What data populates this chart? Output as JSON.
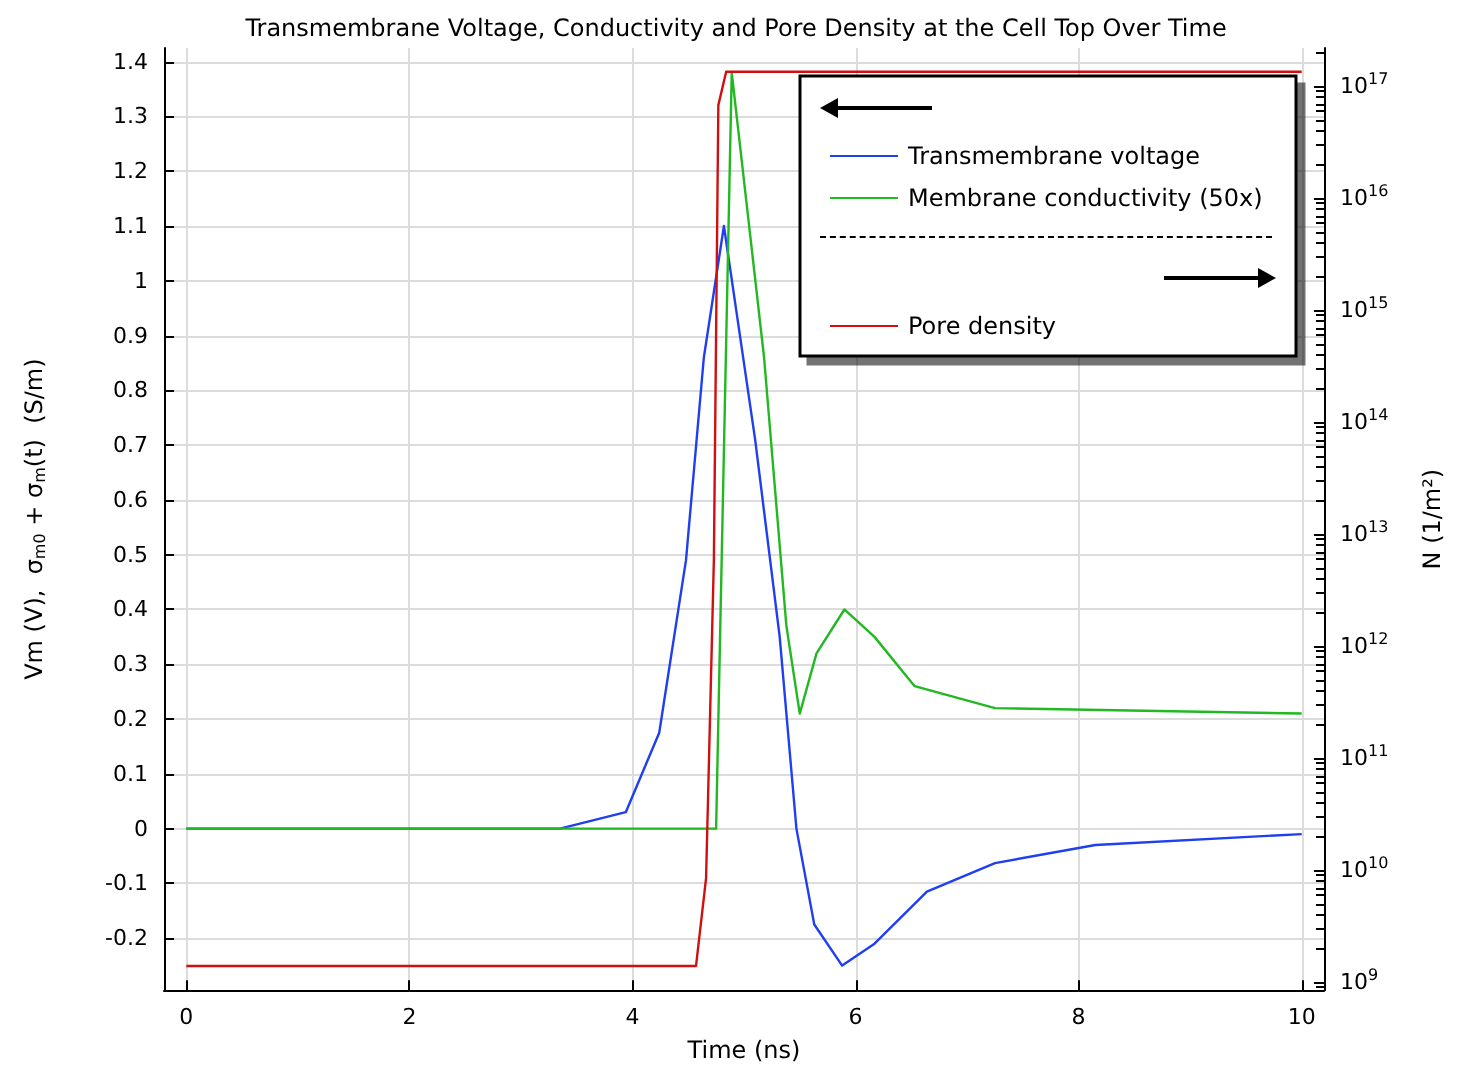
{
  "chart_data": {
    "type": "line",
    "title": "Transmembrane Voltage, Conductivity and Pore Density at the Cell Top Over Time",
    "xlabel": "Time (ns)",
    "ylabel": "Vm (V),  σ$_{m0}$ + σ$_{m}$(t)  (S/m)",
    "y2label": "N (1/m²)",
    "xlim": [
      -0.2,
      10.2
    ],
    "xticks": [
      0,
      2,
      4,
      6,
      8,
      10
    ],
    "ylim": [
      -0.295,
      1.425
    ],
    "yticks": [
      -0.2,
      -0.1,
      0,
      0.1,
      0.2,
      0.3,
      0.4,
      0.5,
      0.6,
      0.7,
      0.8,
      0.9,
      1,
      1.1,
      1.2,
      1.3,
      1.4
    ],
    "y2lim": [
      850000000.0,
      2.2e+17
    ],
    "y2ticks": [
      {
        "value": 1000000000.0,
        "label": "10$^{9}$"
      },
      {
        "value": 10000000000.0,
        "label": "10$^{10}$"
      },
      {
        "value": 100000000000.0,
        "label": "10$^{11}$"
      },
      {
        "value": 1000000000000.0,
        "label": "10$^{12}$"
      },
      {
        "value": 10000000000000.0,
        "label": "10$^{13}$"
      },
      {
        "value": 100000000000000.0,
        "label": "10$^{14}$"
      },
      {
        "value": 1000000000000000.0,
        "label": "10$^{15}$"
      },
      {
        "value": 1e+16,
        "label": "10$^{16}$"
      },
      {
        "value": 1e+17,
        "label": "10$^{17}$"
      }
    ],
    "log": "y2",
    "grid": true,
    "legend": "top right",
    "marker": "none",
    "line_style": "solid",
    "series": [
      {
        "name": "Transmembrane voltage",
        "color": "#1f3ff0",
        "x": [
          0,
          3.35,
          3.94,
          4.24,
          4.48,
          4.64,
          4.82,
          5.1,
          5.32,
          5.47,
          5.63,
          5.88,
          6.17,
          6.64,
          7.25,
          8.15,
          10
        ],
        "values": [
          0,
          0,
          0.03,
          0.175,
          0.49,
          0.86,
          1.1,
          0.71,
          0.35,
          0,
          -0.175,
          -0.25,
          -0.21,
          -0.115,
          -0.063,
          -0.03,
          -0.01
        ]
      },
      {
        "name": "Membrane conductivity (50x)",
        "color": "#22b822",
        "x": [
          0,
          4.75,
          4.89,
          5.18,
          5.38,
          5.5,
          5.65,
          5.9,
          6.17,
          6.53,
          7.25,
          10
        ],
        "values": [
          0,
          0,
          1.38,
          0.86,
          0.37,
          0.21,
          0.32,
          0.4,
          0.35,
          0.26,
          0.22,
          0.21
        ]
      },
      {
        "name": "Pore density",
        "color": "#d01010",
        "axis": "y2",
        "x": [
          0,
          4.57,
          4.66,
          4.73,
          4.77,
          4.84,
          10
        ],
        "values": [
          1400000000.0,
          1400000000.0,
          8500000000.0,
          6000000000000.0,
          6.8e+16,
          1.35e+17,
          1.35e+17
        ]
      }
    ]
  }
}
